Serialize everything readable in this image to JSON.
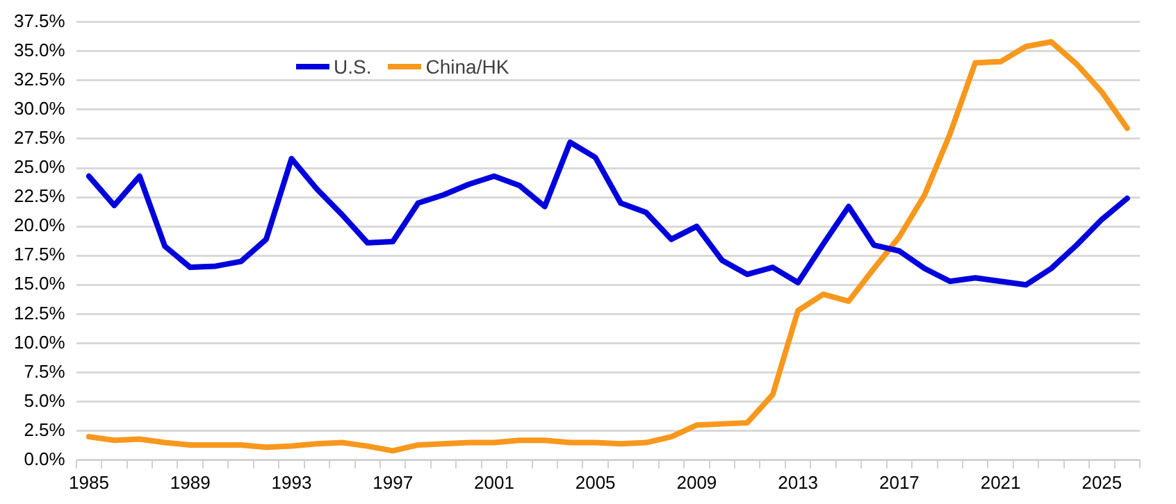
{
  "chart_data": {
    "type": "line",
    "categories": [
      "1985",
      null,
      null,
      null,
      "1989",
      null,
      null,
      null,
      "1993",
      null,
      null,
      null,
      "1997",
      null,
      null,
      null,
      "2001",
      null,
      null,
      null,
      "2005",
      null,
      null,
      null,
      "2009",
      null,
      null,
      null,
      "2013",
      null,
      null,
      null,
      "2017",
      null,
      null,
      null,
      "2021",
      null,
      null,
      null,
      "2025",
      null
    ],
    "series": [
      {
        "name": "U.S.",
        "color": "#0000dd",
        "values": [
          24.3,
          21.8,
          24.3,
          18.3,
          16.5,
          16.6,
          17.0,
          18.9,
          25.8,
          23.2,
          21.0,
          18.6,
          18.7,
          22.0,
          22.7,
          23.6,
          24.3,
          23.5,
          21.7,
          27.2,
          25.9,
          22.0,
          21.2,
          18.9,
          20.0,
          17.1,
          15.9,
          16.5,
          15.2,
          18.5,
          21.7,
          18.4,
          17.9,
          16.4,
          15.3,
          15.6,
          15.3,
          15.0,
          16.4,
          18.4,
          20.6,
          22.4
        ]
      },
      {
        "name": "China/HK",
        "color": "#f7981d",
        "values": [
          2.0,
          1.7,
          1.8,
          1.5,
          1.3,
          1.3,
          1.3,
          1.1,
          1.2,
          1.4,
          1.5,
          1.2,
          0.8,
          1.3,
          1.4,
          1.5,
          1.5,
          1.7,
          1.7,
          1.5,
          1.5,
          1.4,
          1.5,
          2.0,
          3.0,
          3.1,
          3.2,
          5.6,
          12.8,
          14.2,
          13.6,
          16.4,
          19.1,
          22.7,
          27.9,
          34.0,
          34.1,
          35.4,
          35.8,
          33.9,
          31.5,
          28.4
        ]
      }
    ],
    "ylim": [
      0,
      37.5
    ],
    "yticks": [
      {
        "value": 0,
        "label": "0.0%"
      },
      {
        "value": 2.5,
        "label": "2.5%"
      },
      {
        "value": 5,
        "label": "5.0%"
      },
      {
        "value": 7.5,
        "label": "7.5%"
      },
      {
        "value": 10,
        "label": "10.0%"
      },
      {
        "value": 12.5,
        "label": "12.5%"
      },
      {
        "value": 15,
        "label": "15.0%"
      },
      {
        "value": 17.5,
        "label": "17.5%"
      },
      {
        "value": 20,
        "label": "20.0%"
      },
      {
        "value": 22.5,
        "label": "22.5%"
      },
      {
        "value": 25,
        "label": "25.0%"
      },
      {
        "value": 27.5,
        "label": "27.5%"
      },
      {
        "value": 30,
        "label": "30.0%"
      },
      {
        "value": 32.5,
        "label": "32.5%"
      },
      {
        "value": 35,
        "label": "35.0%"
      },
      {
        "value": 37.5,
        "label": "37.5%"
      }
    ],
    "grid": "y",
    "legend": "top left",
    "marker": "none",
    "line_style": "solid"
  }
}
